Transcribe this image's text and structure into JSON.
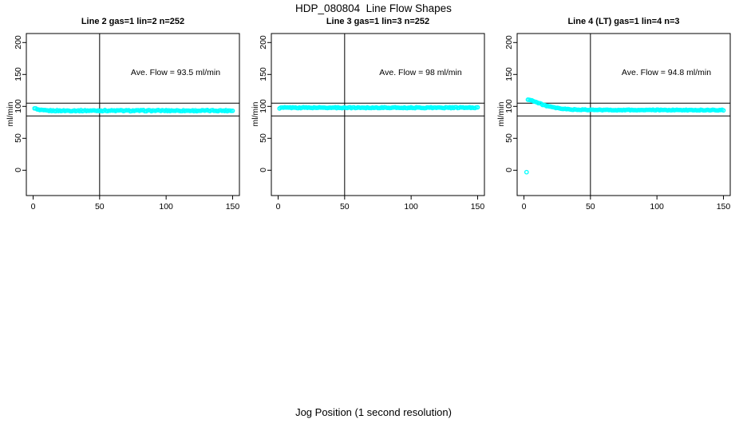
{
  "title": "HDP_080804  Line Flow Shapes",
  "xlabel": "Jog Position (1 second resolution)",
  "colors": {
    "points": "#00FFFF",
    "axis": "#000000",
    "background": "#FFFFFF"
  },
  "chart_data": [
    {
      "type": "scatter",
      "title": "Line 2 gas=1 lin=2 n=252",
      "annotation": "Ave. Flow =  93.5  ml/min",
      "ave_flow": 93.5,
      "ylabel": "ml/min",
      "x_ticks": [
        0,
        50,
        100,
        150
      ],
      "y_ticks": [
        0,
        50,
        100,
        150,
        200
      ],
      "ref_lines_h": [
        105,
        85
      ],
      "ref_line_v": 50,
      "x_range": [
        1,
        150
      ],
      "step": 1,
      "jitter": 0.9,
      "anchors": [
        [
          1,
          97.6
        ],
        [
          2,
          96.3
        ],
        [
          3,
          95.2
        ],
        [
          4,
          94.6
        ],
        [
          5,
          94.1
        ],
        [
          7,
          93.7
        ],
        [
          10,
          93.4
        ],
        [
          15,
          93.3
        ],
        [
          25,
          93.3
        ],
        [
          50,
          93.4
        ],
        [
          75,
          93.3
        ],
        [
          100,
          93.4
        ],
        [
          125,
          93.3
        ],
        [
          150,
          93.4
        ]
      ],
      "outliers": []
    },
    {
      "type": "scatter",
      "title": "Line 3 gas=1 lin=3 n=252",
      "annotation": "Ave. Flow =  98  ml/min",
      "ave_flow": 98,
      "ylabel": "ml/min",
      "x_ticks": [
        0,
        50,
        100,
        150
      ],
      "y_ticks": [
        0,
        50,
        100,
        150,
        200
      ],
      "ref_lines_h": [
        105,
        85
      ],
      "ref_line_v": 50,
      "x_range": [
        1,
        150
      ],
      "step": 1,
      "jitter": 0.8,
      "anchors": [
        [
          1,
          96.8
        ],
        [
          2,
          97.5
        ],
        [
          3,
          97.9
        ],
        [
          5,
          98.0
        ],
        [
          150,
          98.0
        ]
      ],
      "outliers": []
    },
    {
      "type": "scatter",
      "title": "Line 4 (LT) gas=1 lin=4 n=3",
      "annotation": "Ave. Flow =  94.8  ml/min",
      "ave_flow": 94.8,
      "ylabel": "ml/min",
      "x_ticks": [
        0,
        50,
        100,
        150
      ],
      "y_ticks": [
        0,
        50,
        100,
        150,
        200
      ],
      "ref_lines_h": [
        105,
        85
      ],
      "ref_line_v": 50,
      "x_range": [
        3,
        150
      ],
      "step": 1,
      "jitter": 0.6,
      "anchors": [
        [
          3,
          110.5
        ],
        [
          4,
          110.8
        ],
        [
          5,
          110.2
        ],
        [
          6,
          109.3
        ],
        [
          8,
          107.6
        ],
        [
          10,
          106.0
        ],
        [
          12,
          104.4
        ],
        [
          14,
          102.9
        ],
        [
          16,
          101.5
        ],
        [
          18,
          100.3
        ],
        [
          20,
          99.2
        ],
        [
          23,
          97.9
        ],
        [
          26,
          96.9
        ],
        [
          30,
          96.0
        ],
        [
          35,
          95.3
        ],
        [
          40,
          94.9
        ],
        [
          50,
          94.5
        ],
        [
          60,
          94.4
        ],
        [
          80,
          94.3
        ],
        [
          100,
          94.3
        ],
        [
          125,
          94.2
        ],
        [
          150,
          94.2
        ]
      ],
      "outliers": [
        [
          2,
          -3
        ]
      ]
    }
  ]
}
